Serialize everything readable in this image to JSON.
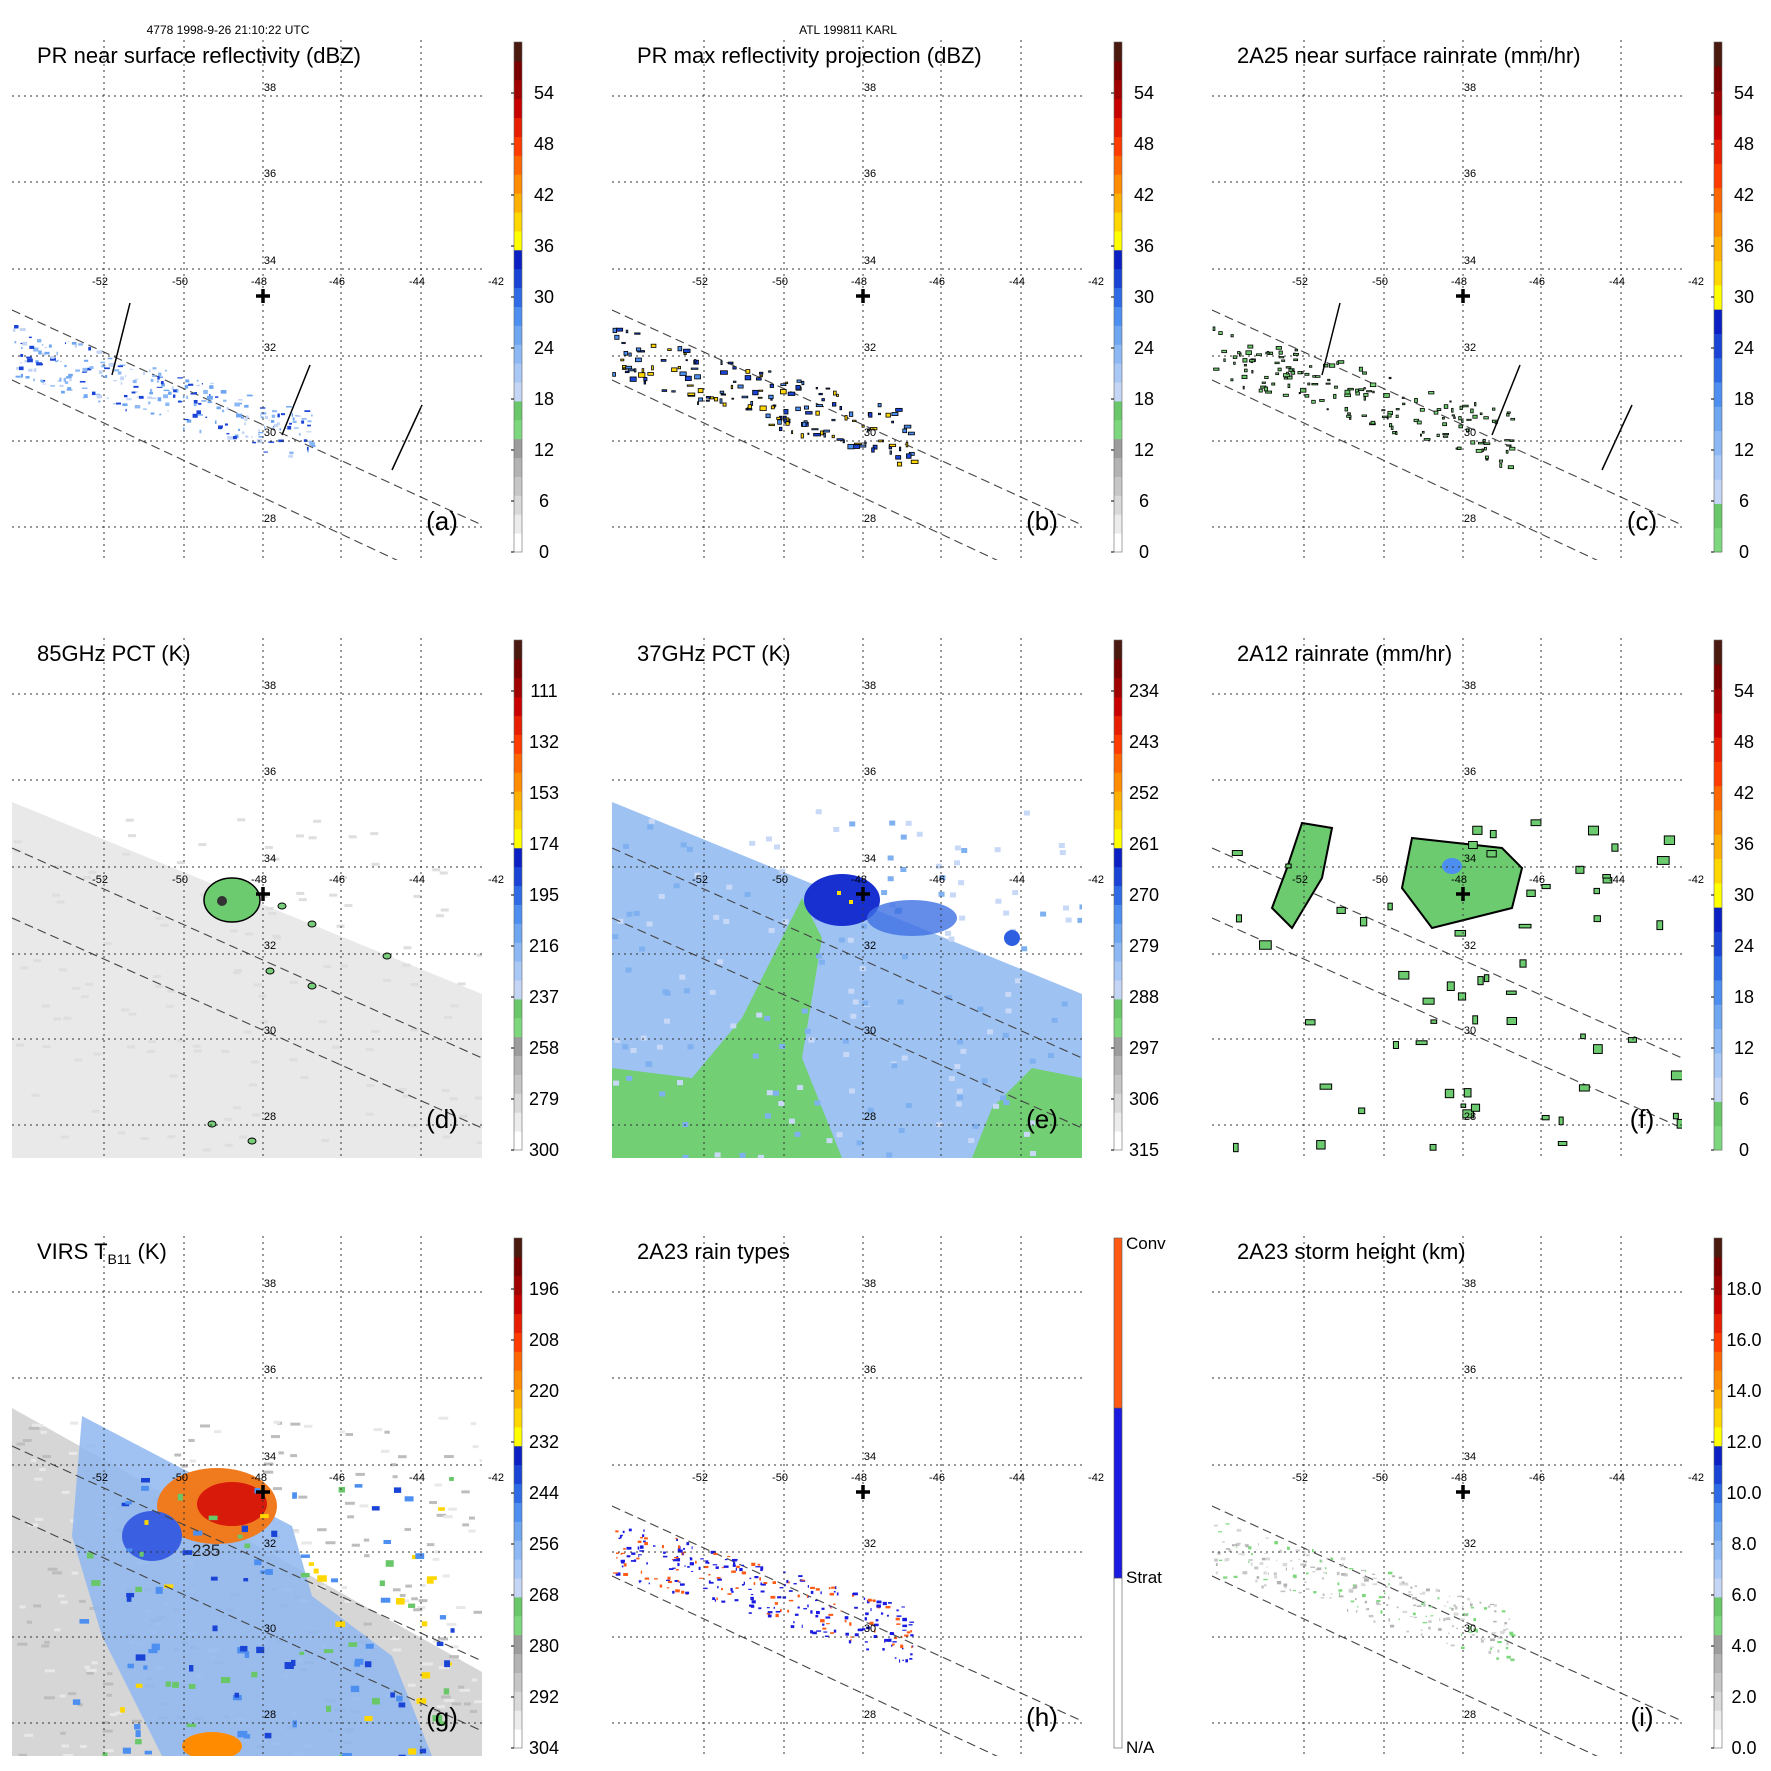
{
  "header": {
    "left": "4778 1998-9-26 21:10:22 UTC",
    "center": "ATL 199811 KARL"
  },
  "axes": {
    "lon_labels": [
      "-52",
      "-50",
      "-48",
      "-46",
      "-44",
      "-42"
    ],
    "lat_labels": [
      "38",
      "36",
      "34",
      "32",
      "30",
      "28"
    ]
  },
  "panels": [
    {
      "id": "a",
      "title": "PR near surface reflectivity (dBZ)",
      "letter": "(a)",
      "colorbar": [
        "0",
        "6",
        "12",
        "18",
        "24",
        "30",
        "36",
        "42",
        "48",
        "54"
      ],
      "cb": "dbz",
      "kind": "pr"
    },
    {
      "id": "b",
      "title": "PR max reflectivity projection (dBZ)",
      "letter": "(b)",
      "colorbar": [
        "0",
        "6",
        "12",
        "18",
        "24",
        "30",
        "36",
        "42",
        "48",
        "54"
      ],
      "cb": "dbz",
      "kind": "prmax"
    },
    {
      "id": "c",
      "title": "2A25 near surface rainrate (mm/hr)",
      "letter": "(c)",
      "colorbar": [
        "0",
        "6",
        "12",
        "18",
        "24",
        "30",
        "36",
        "42",
        "48",
        "54"
      ],
      "cb": "rain",
      "kind": "rain25"
    },
    {
      "id": "d",
      "title": "85GHz PCT (K)",
      "letter": "(d)",
      "colorbar": [
        "300",
        "279",
        "258",
        "237",
        "216",
        "195",
        "174",
        "153",
        "132",
        "111"
      ],
      "cb": "pct",
      "kind": "pct85"
    },
    {
      "id": "e",
      "title": "37GHz PCT (K)",
      "letter": "(e)",
      "colorbar": [
        "315",
        "306",
        "297",
        "288",
        "279",
        "270",
        "261",
        "252",
        "243",
        "234"
      ],
      "cb": "pct",
      "kind": "pct37"
    },
    {
      "id": "f",
      "title": "2A12 rainrate (mm/hr)",
      "letter": "(f)",
      "colorbar": [
        "0",
        "6",
        "12",
        "18",
        "24",
        "30",
        "36",
        "42",
        "48",
        "54"
      ],
      "cb": "rain",
      "kind": "rain12"
    },
    {
      "id": "g",
      "title_main": "VIRS T",
      "title_sub": "B11",
      "title_suffix": " (K)",
      "letter": "(g)",
      "colorbar": [
        "304",
        "292",
        "280",
        "268",
        "256",
        "244",
        "232",
        "220",
        "208",
        "196"
      ],
      "cb": "virs",
      "kind": "virs",
      "annotation": "235"
    },
    {
      "id": "h",
      "title": "2A23 rain types",
      "letter": "(h)",
      "colorbar": [
        "N/A",
        "Strat",
        "Conv"
      ],
      "cb": "types",
      "kind": "types"
    },
    {
      "id": "i",
      "title": "2A23 storm height (km)",
      "letter": "(i)",
      "colorbar": [
        "0.0",
        "2.0",
        "4.0",
        "6.0",
        "8.0",
        "10.0",
        "12.0",
        "14.0",
        "16.0",
        "18.0"
      ],
      "cb": "height",
      "kind": "height"
    }
  ],
  "colors": {
    "dbz": [
      "#ffffff",
      "#ececec",
      "#d9d9d9",
      "#c6c6c6",
      "#b3b3b3",
      "#9c9c9c",
      "#7dd87d",
      "#69c76a",
      "#c5d5f5",
      "#a9c8f5",
      "#8cb8f5",
      "#6ea6f2",
      "#4d8ff0",
      "#2e6be6",
      "#1a44d6",
      "#0a1fc4",
      "#ffff00",
      "#ffd700",
      "#ffb000",
      "#ff8c00",
      "#ff6600",
      "#ff3c00",
      "#e81e00",
      "#c80000",
      "#a00000",
      "#7a0000",
      "#4a1a10"
    ],
    "rain": [
      "#7dd87d",
      "#69c76a",
      "#c5d5f5",
      "#a9c8f5",
      "#8cb8f5",
      "#6ea6f2",
      "#4d8ff0",
      "#2e6be6",
      "#1a44d6",
      "#0a1fc4",
      "#ffff00",
      "#ffd700",
      "#ffb000",
      "#ff8c00",
      "#ff6600",
      "#ff3c00",
      "#e81e00",
      "#c80000",
      "#a00000",
      "#7a0000",
      "#4a1a10"
    ],
    "pct": [
      "#ffffff",
      "#ececec",
      "#d9d9d9",
      "#c6c6c6",
      "#b3b3b3",
      "#9c9c9c",
      "#7dd87d",
      "#69c76a",
      "#c5d5f5",
      "#a9c8f5",
      "#8cb8f5",
      "#6ea6f2",
      "#4d8ff0",
      "#2e6be6",
      "#1a44d6",
      "#0a1fc4",
      "#ffff00",
      "#ffd700",
      "#ffb000",
      "#ff8c00",
      "#ff6600",
      "#ff3c00",
      "#e81e00",
      "#c80000",
      "#a00000",
      "#7a0000",
      "#4a1a10"
    ],
    "types": [
      "#ffffff",
      "#1a1ae0",
      "#ff5a14"
    ]
  }
}
